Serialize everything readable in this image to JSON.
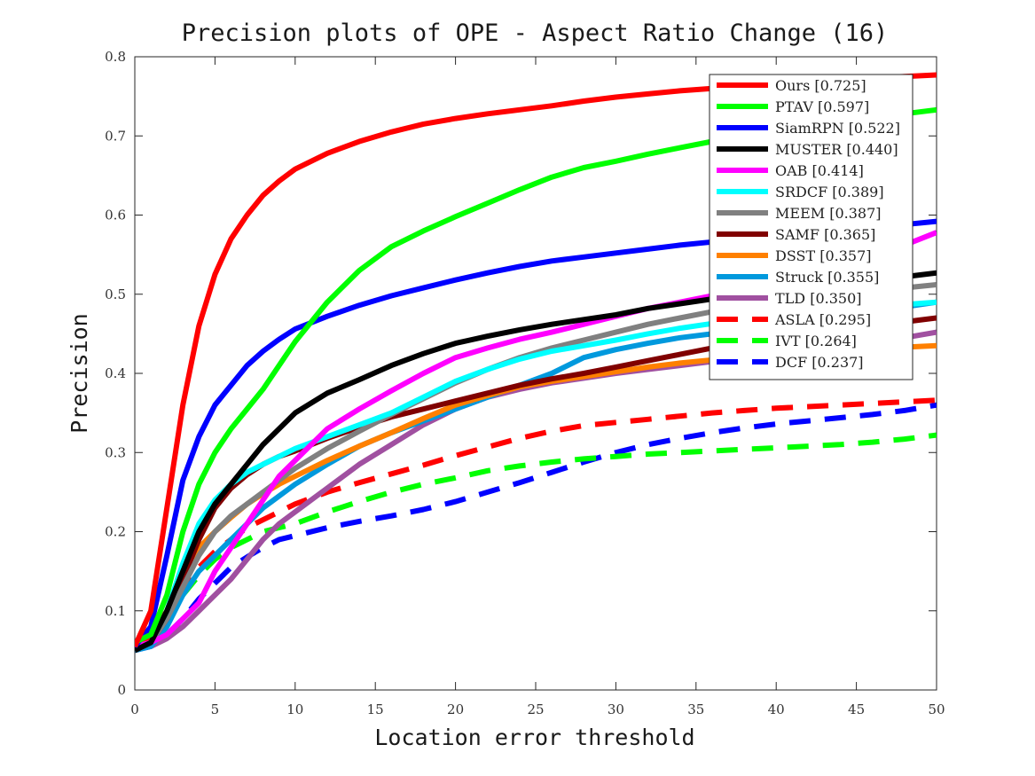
{
  "chart_data": {
    "type": "line",
    "title": "Precision plots of OPE - Aspect Ratio Change (16)",
    "xlabel": "Location error threshold",
    "ylabel": "Precision",
    "xlim": [
      0,
      50
    ],
    "ylim": [
      0,
      0.8
    ],
    "xticks": [
      0,
      5,
      10,
      15,
      20,
      25,
      30,
      35,
      40,
      45,
      50
    ],
    "yticks": [
      0,
      0.1,
      0.2,
      0.3,
      0.4,
      0.5,
      0.6,
      0.7,
      0.8
    ],
    "xtick_labels": [
      "0",
      "5",
      "10",
      "15",
      "20",
      "25",
      "30",
      "35",
      "40",
      "45",
      "50"
    ],
    "ytick_labels": [
      "0",
      "0.1",
      "0.2",
      "0.3",
      "0.4",
      "0.5",
      "0.6",
      "0.7",
      "0.8"
    ],
    "grid": false,
    "legend_position": "top-right",
    "x": [
      0,
      1,
      2,
      3,
      4,
      5,
      6,
      7,
      8,
      9,
      10,
      12,
      14,
      16,
      18,
      20,
      22,
      24,
      26,
      28,
      30,
      32,
      34,
      36,
      38,
      40,
      42,
      44,
      46,
      48,
      50
    ],
    "series": [
      {
        "name": "Ours [0.725]",
        "color": "#ff0000",
        "dash": false,
        "values": [
          0.055,
          0.1,
          0.23,
          0.36,
          0.46,
          0.525,
          0.57,
          0.6,
          0.625,
          0.643,
          0.658,
          0.678,
          0.693,
          0.705,
          0.715,
          0.722,
          0.728,
          0.733,
          0.738,
          0.744,
          0.749,
          0.753,
          0.757,
          0.76,
          0.763,
          0.766,
          0.768,
          0.771,
          0.773,
          0.775,
          0.777
        ]
      },
      {
        "name": "PTAV [0.597]",
        "color": "#00ff00",
        "dash": false,
        "values": [
          0.06,
          0.07,
          0.12,
          0.2,
          0.26,
          0.3,
          0.33,
          0.355,
          0.38,
          0.41,
          0.44,
          0.49,
          0.53,
          0.56,
          0.58,
          0.598,
          0.615,
          0.632,
          0.648,
          0.66,
          0.668,
          0.677,
          0.685,
          0.693,
          0.7,
          0.706,
          0.712,
          0.718,
          0.723,
          0.728,
          0.733
        ]
      },
      {
        "name": "SiamRPN [0.522]",
        "color": "#0000ff",
        "dash": false,
        "values": [
          0.055,
          0.08,
          0.17,
          0.265,
          0.32,
          0.36,
          0.385,
          0.41,
          0.428,
          0.443,
          0.456,
          0.472,
          0.486,
          0.498,
          0.508,
          0.518,
          0.527,
          0.535,
          0.542,
          0.547,
          0.552,
          0.557,
          0.562,
          0.566,
          0.57,
          0.574,
          0.578,
          0.582,
          0.585,
          0.588,
          0.592
        ]
      },
      {
        "name": "MUSTER [0.440]",
        "color": "#000000",
        "dash": false,
        "values": [
          0.05,
          0.06,
          0.1,
          0.15,
          0.2,
          0.235,
          0.26,
          0.285,
          0.31,
          0.33,
          0.35,
          0.375,
          0.392,
          0.41,
          0.425,
          0.438,
          0.447,
          0.455,
          0.462,
          0.468,
          0.474,
          0.482,
          0.488,
          0.494,
          0.499,
          0.504,
          0.509,
          0.513,
          0.518,
          0.522,
          0.527
        ]
      },
      {
        "name": "OAB [0.414]",
        "color": "#ff00ff",
        "dash": false,
        "values": [
          0.055,
          0.06,
          0.07,
          0.09,
          0.11,
          0.15,
          0.18,
          0.21,
          0.24,
          0.27,
          0.29,
          0.33,
          0.355,
          0.378,
          0.4,
          0.42,
          0.432,
          0.443,
          0.452,
          0.462,
          0.472,
          0.482,
          0.49,
          0.498,
          0.506,
          0.515,
          0.525,
          0.536,
          0.548,
          0.562,
          0.578
        ]
      },
      {
        "name": "SRDCF [0.389]",
        "color": "#00ffff",
        "dash": false,
        "values": [
          0.05,
          0.06,
          0.1,
          0.16,
          0.21,
          0.24,
          0.26,
          0.275,
          0.285,
          0.295,
          0.305,
          0.32,
          0.335,
          0.35,
          0.37,
          0.39,
          0.405,
          0.418,
          0.428,
          0.435,
          0.442,
          0.45,
          0.457,
          0.463,
          0.468,
          0.472,
          0.476,
          0.48,
          0.484,
          0.487,
          0.49
        ]
      },
      {
        "name": "MEEM [0.387]",
        "color": "#808080",
        "dash": false,
        "values": [
          0.05,
          0.06,
          0.09,
          0.13,
          0.17,
          0.2,
          0.22,
          0.235,
          0.25,
          0.265,
          0.28,
          0.305,
          0.327,
          0.348,
          0.368,
          0.388,
          0.405,
          0.42,
          0.432,
          0.442,
          0.452,
          0.462,
          0.47,
          0.478,
          0.485,
          0.491,
          0.496,
          0.5,
          0.504,
          0.508,
          0.512
        ]
      },
      {
        "name": "SAMF [0.365]",
        "color": "#800000",
        "dash": false,
        "values": [
          0.05,
          0.06,
          0.09,
          0.14,
          0.19,
          0.23,
          0.255,
          0.272,
          0.285,
          0.295,
          0.302,
          0.318,
          0.332,
          0.345,
          0.355,
          0.365,
          0.375,
          0.385,
          0.393,
          0.4,
          0.408,
          0.416,
          0.424,
          0.432,
          0.44,
          0.447,
          0.452,
          0.457,
          0.461,
          0.465,
          0.47
        ]
      },
      {
        "name": "DSST [0.357]",
        "color": "#ff8000",
        "dash": false,
        "values": [
          0.05,
          0.06,
          0.1,
          0.15,
          0.18,
          0.2,
          0.218,
          0.235,
          0.248,
          0.26,
          0.27,
          0.29,
          0.308,
          0.325,
          0.343,
          0.36,
          0.372,
          0.383,
          0.39,
          0.396,
          0.402,
          0.408,
          0.413,
          0.417,
          0.421,
          0.424,
          0.427,
          0.429,
          0.431,
          0.433,
          0.435
        ]
      },
      {
        "name": "Struck [0.355]",
        "color": "#0099dd",
        "dash": false,
        "values": [
          0.05,
          0.055,
          0.08,
          0.12,
          0.15,
          0.17,
          0.19,
          0.21,
          0.23,
          0.245,
          0.26,
          0.285,
          0.308,
          0.325,
          0.34,
          0.355,
          0.37,
          0.385,
          0.4,
          0.42,
          0.43,
          0.438,
          0.445,
          0.45,
          0.455,
          0.46,
          0.466,
          0.472,
          0.478,
          0.484,
          0.49
        ]
      },
      {
        "name": "TLD [0.350]",
        "color": "#a050a0",
        "dash": false,
        "values": [
          0.055,
          0.055,
          0.065,
          0.08,
          0.1,
          0.12,
          0.14,
          0.165,
          0.19,
          0.21,
          0.225,
          0.255,
          0.285,
          0.31,
          0.335,
          0.355,
          0.37,
          0.38,
          0.388,
          0.394,
          0.4,
          0.405,
          0.41,
          0.415,
          0.42,
          0.425,
          0.43,
          0.435,
          0.44,
          0.445,
          0.452
        ]
      },
      {
        "name": "ASLA [0.295]",
        "color": "#ff0000",
        "dash": true,
        "values": [
          0.05,
          0.07,
          0.1,
          0.13,
          0.155,
          0.175,
          0.19,
          0.205,
          0.215,
          0.225,
          0.235,
          0.25,
          0.262,
          0.273,
          0.284,
          0.296,
          0.307,
          0.318,
          0.327,
          0.334,
          0.338,
          0.342,
          0.346,
          0.35,
          0.353,
          0.356,
          0.358,
          0.36,
          0.362,
          0.364,
          0.366
        ]
      },
      {
        "name": "IVT [0.264]",
        "color": "#00ff00",
        "dash": true,
        "values": [
          0.055,
          0.065,
          0.09,
          0.12,
          0.145,
          0.165,
          0.18,
          0.19,
          0.2,
          0.205,
          0.21,
          0.225,
          0.238,
          0.25,
          0.26,
          0.268,
          0.277,
          0.283,
          0.288,
          0.292,
          0.295,
          0.298,
          0.3,
          0.302,
          0.304,
          0.306,
          0.308,
          0.31,
          0.313,
          0.317,
          0.322
        ]
      },
      {
        "name": "DCF [0.237]",
        "color": "#0000ff",
        "dash": true,
        "values": [
          0.05,
          0.055,
          0.07,
          0.09,
          0.115,
          0.135,
          0.155,
          0.168,
          0.18,
          0.19,
          0.195,
          0.205,
          0.213,
          0.22,
          0.228,
          0.238,
          0.25,
          0.262,
          0.275,
          0.288,
          0.3,
          0.31,
          0.318,
          0.325,
          0.331,
          0.336,
          0.34,
          0.344,
          0.348,
          0.353,
          0.36
        ]
      }
    ]
  }
}
